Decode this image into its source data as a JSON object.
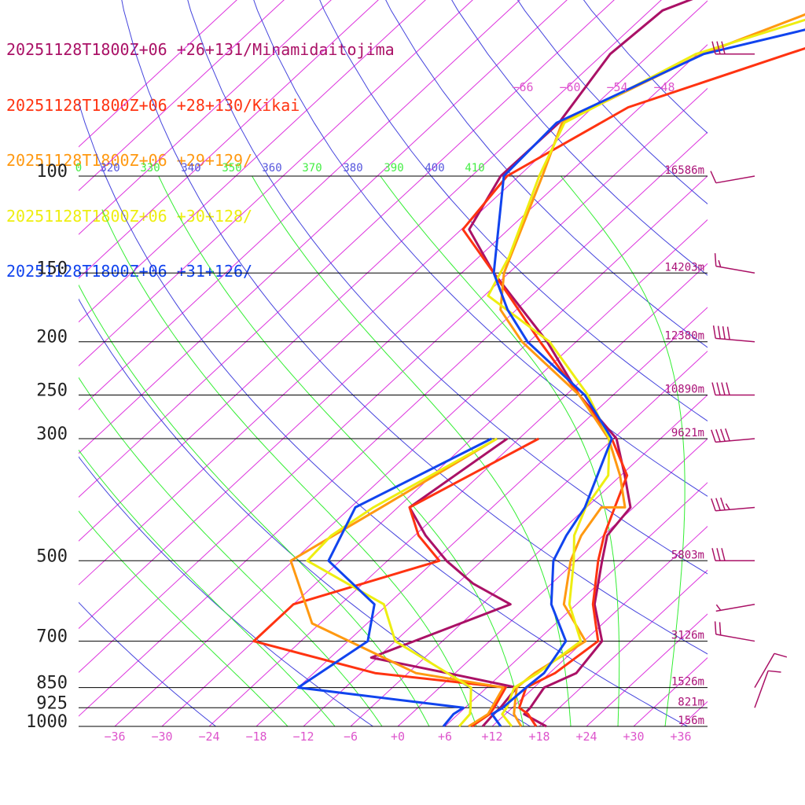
{
  "chart_data": {
    "type": "line",
    "diagram": "skew-T log-P",
    "pressure_levels": [
      100,
      150,
      200,
      250,
      300,
      500,
      700,
      850,
      925,
      1000
    ],
    "pressure_labels": [
      "100",
      "150",
      "200",
      "250",
      "300",
      "500",
      "700",
      "850",
      "925",
      "1000"
    ],
    "heights": [
      {
        "p": 100,
        "label": "16586m"
      },
      {
        "p": 150,
        "label": "14203m"
      },
      {
        "p": 200,
        "label": "12380m"
      },
      {
        "p": 250,
        "label": "10890m"
      },
      {
        "p": 300,
        "label": "9621m"
      },
      {
        "p": 500,
        "label": "5803m"
      },
      {
        "p": 700,
        "label": "3126m"
      },
      {
        "p": 850,
        "label": "1526m"
      },
      {
        "p": 925,
        "label": "821m"
      },
      {
        "p": 1000,
        "label": "156m"
      }
    ],
    "temperature_ticks": [
      {
        "v": -36,
        "label": "−36"
      },
      {
        "v": -30,
        "label": "−30"
      },
      {
        "v": -24,
        "label": "−24"
      },
      {
        "v": -18,
        "label": "−18"
      },
      {
        "v": -12,
        "label": "−12"
      },
      {
        "v": -6,
        "label": "−6"
      },
      {
        "v": 0,
        "label": "+0"
      },
      {
        "v": 6,
        "label": "+6"
      },
      {
        "v": 12,
        "label": "+12"
      },
      {
        "v": 18,
        "label": "+18"
      },
      {
        "v": 24,
        "label": "+24"
      },
      {
        "v": 30,
        "label": "+30"
      },
      {
        "v": 36,
        "label": "+36"
      }
    ],
    "top_isotherm_labels": [
      {
        "v": -66,
        "label": "−66"
      },
      {
        "v": -60,
        "label": "−60"
      },
      {
        "v": -54,
        "label": "−54"
      },
      {
        "v": -48,
        "label": "−48"
      }
    ],
    "theta_labels": [
      {
        "label": "0",
        "color": "#44ee44"
      },
      {
        "label": "320",
        "color": "#5555dd"
      },
      {
        "label": "330",
        "color": "#44ee44"
      },
      {
        "label": "340",
        "color": "#5555dd"
      },
      {
        "label": "350",
        "color": "#44ee44"
      },
      {
        "label": "360",
        "color": "#5555dd"
      },
      {
        "label": "370",
        "color": "#44ee44"
      },
      {
        "label": "380",
        "color": "#5555dd"
      },
      {
        "label": "390",
        "color": "#44ee44"
      },
      {
        "label": "400",
        "color": "#5555dd"
      },
      {
        "label": "410",
        "color": "#44ee44"
      }
    ],
    "series": [
      {
        "name": "20251128T1800Z+06 +26+131/Minamidaitojima",
        "color": "#aa1166",
        "temperature": [
          [
            1000,
            18.9
          ],
          [
            950,
            14.4
          ],
          [
            925,
            14.3
          ],
          [
            850,
            13.3
          ],
          [
            800,
            15.4
          ],
          [
            700,
            14.3
          ],
          [
            600,
            8.3
          ],
          [
            500,
            3.3
          ],
          [
            450,
            0.5
          ],
          [
            400,
            -0.4
          ],
          [
            350,
            -5.5
          ],
          [
            300,
            -11.6
          ],
          [
            250,
            -22.3
          ],
          [
            200,
            -33.7
          ],
          [
            150,
            -49.9
          ],
          [
            125,
            -59
          ],
          [
            100,
            -62.3
          ],
          [
            80,
            -62.2
          ],
          [
            60,
            -65.1
          ],
          [
            50,
            -64.4
          ],
          [
            40,
            -54
          ]
        ],
        "dewpoint": [
          [
            1000,
            10.8
          ],
          [
            950,
            10.5
          ],
          [
            925,
            10.5
          ],
          [
            850,
            9.8
          ],
          [
            800,
            -1
          ],
          [
            750,
            -12.8
          ],
          [
            600,
            -2.4
          ],
          [
            550,
            -10
          ],
          [
            500,
            -16.5
          ],
          [
            450,
            -22.6
          ],
          [
            400,
            -28.5
          ],
          [
            300,
            -25.5
          ]
        ]
      },
      {
        "name": "20251128T1800Z+06 +28+130/Kikai",
        "color": "#ff3311",
        "temperature": [
          [
            1000,
            17.6
          ],
          [
            950,
            14.9
          ],
          [
            925,
            12.9
          ],
          [
            850,
            11
          ],
          [
            800,
            12.7
          ],
          [
            700,
            13.8
          ],
          [
            600,
            8.1
          ],
          [
            500,
            2.8
          ],
          [
            450,
            0.1
          ],
          [
            400,
            -2.4
          ],
          [
            350,
            -5.2
          ],
          [
            300,
            -12.2
          ],
          [
            250,
            -22.3
          ],
          [
            200,
            -34.6
          ],
          [
            150,
            -49.9
          ],
          [
            125,
            -59.8
          ],
          [
            100,
            -61.5
          ],
          [
            75,
            -55.5
          ],
          [
            60,
            -42.5
          ],
          [
            40,
            -18
          ]
        ],
        "dewpoint": [
          [
            1000,
            9.4
          ],
          [
            950,
            10
          ],
          [
            925,
            9.7
          ],
          [
            850,
            8.4
          ],
          [
            800,
            -10.2
          ],
          [
            700,
            -30
          ],
          [
            600,
            -30
          ],
          [
            500,
            -17.4
          ],
          [
            450,
            -23.5
          ],
          [
            400,
            -28.5
          ],
          [
            300,
            -21.5
          ]
        ]
      },
      {
        "name": "20251128T1800Z+06 +29+129/",
        "color": "#ff9911",
        "temperature": [
          [
            1000,
            15.7
          ],
          [
            950,
            13.1
          ],
          [
            925,
            12.3
          ],
          [
            850,
            9.8
          ],
          [
            800,
            10.1
          ],
          [
            700,
            12.2
          ],
          [
            600,
            4.4
          ],
          [
            500,
            -0.7
          ],
          [
            450,
            -2.8
          ],
          [
            400,
            -4.1
          ],
          [
            400,
            -1.1
          ],
          [
            350,
            -6.1
          ],
          [
            300,
            -12.6
          ],
          [
            250,
            -22.3
          ],
          [
            200,
            -36.9
          ],
          [
            175,
            -44
          ],
          [
            150,
            -48.6
          ],
          [
            100,
            -57
          ],
          [
            80,
            -61.8
          ],
          [
            60,
            -53.4
          ],
          [
            45,
            -40
          ],
          [
            30,
            -14
          ]
        ],
        "dewpoint": [
          [
            1000,
            9
          ],
          [
            950,
            9.8
          ],
          [
            925,
            9.4
          ],
          [
            850,
            8.1
          ],
          [
            800,
            -5
          ],
          [
            650,
            -25
          ],
          [
            500,
            -36.3
          ],
          [
            400,
            -32.1
          ],
          [
            300,
            -26.8
          ]
        ]
      },
      {
        "name": "20251128T1800Z+06 +30+128/",
        "color": "#eeee11",
        "temperature": [
          [
            1000,
            14.5
          ],
          [
            950,
            11.6
          ],
          [
            925,
            11.3
          ],
          [
            850,
            9.5
          ],
          [
            800,
            10.5
          ],
          [
            700,
            11.6
          ],
          [
            600,
            5.1
          ],
          [
            500,
            -0.3
          ],
          [
            450,
            -3.7
          ],
          [
            400,
            -6.1
          ],
          [
            350,
            -7.6
          ],
          [
            300,
            -12.5
          ],
          [
            250,
            -21.2
          ],
          [
            200,
            -33.4
          ],
          [
            165,
            -47.5
          ],
          [
            140,
            -50.2
          ],
          [
            100,
            -57.4
          ],
          [
            80,
            -61.5
          ],
          [
            60,
            -54.2
          ],
          [
            40,
            -28
          ],
          [
            30,
            -18
          ]
        ],
        "dewpoint": [
          [
            1000,
            7.8
          ],
          [
            950,
            7.5
          ],
          [
            925,
            6.7
          ],
          [
            850,
            4
          ],
          [
            700,
            -12
          ],
          [
            600,
            -18.5
          ],
          [
            500,
            -34.2
          ],
          [
            450,
            -34.6
          ],
          [
            400,
            -33.1
          ],
          [
            300,
            -26.8
          ]
        ]
      },
      {
        "name": "20251128T1800Z+06 +31+126/",
        "color": "#1144ee",
        "temperature": [
          [
            1000,
            13.1
          ],
          [
            950,
            10.3
          ],
          [
            925,
            10.8
          ],
          [
            850,
            11
          ],
          [
            800,
            11.3
          ],
          [
            700,
            9.7
          ],
          [
            600,
            2.8
          ],
          [
            500,
            -2.9
          ],
          [
            450,
            -4.7
          ],
          [
            400,
            -6.2
          ],
          [
            300,
            -12.2
          ],
          [
            250,
            -21.6
          ],
          [
            200,
            -36.2
          ],
          [
            175,
            -43.1
          ],
          [
            150,
            -49.9
          ],
          [
            100,
            -61.9
          ],
          [
            80,
            -62.5
          ],
          [
            60,
            -53.2
          ],
          [
            40,
            -15
          ]
        ],
        "dewpoint": [
          [
            1000,
            5.8
          ],
          [
            950,
            5.4
          ],
          [
            925,
            5.8
          ],
          [
            850,
            -18
          ],
          [
            700,
            -15.5
          ],
          [
            600,
            -19.7
          ],
          [
            500,
            -31.5
          ],
          [
            400,
            -35.4
          ],
          [
            300,
            -27.5
          ]
        ]
      }
    ],
    "wind_barbs": [
      {
        "p": 40,
        "dir": 270,
        "kt": 25
      },
      {
        "p": 60,
        "dir": 270,
        "kt": 30
      },
      {
        "p": 100,
        "dir": 260,
        "kt": 10
      },
      {
        "p": 150,
        "dir": 280,
        "kt": 15
      },
      {
        "p": 200,
        "dir": 275,
        "kt": 40
      },
      {
        "p": 250,
        "dir": 270,
        "kt": 40
      },
      {
        "p": 300,
        "dir": 265,
        "kt": 40
      },
      {
        "p": 400,
        "dir": 265,
        "kt": 35
      },
      {
        "p": 500,
        "dir": 270,
        "kt": 30
      },
      {
        "p": 600,
        "dir": 260,
        "kt": 5
      },
      {
        "p": 700,
        "dir": 280,
        "kt": 20
      },
      {
        "p": 850,
        "dir": 30,
        "kt": 10
      },
      {
        "p": 925,
        "dir": 20,
        "kt": 10
      }
    ],
    "colors": {
      "isotherm": "#dd33dd",
      "dry_adiabat": "#4444dd",
      "moist_adiabat": "#33ee33",
      "isobar": "#000000",
      "height_label": "#aa1177",
      "temperature_label": "#dd55cc",
      "barb": "#aa1166"
    }
  }
}
